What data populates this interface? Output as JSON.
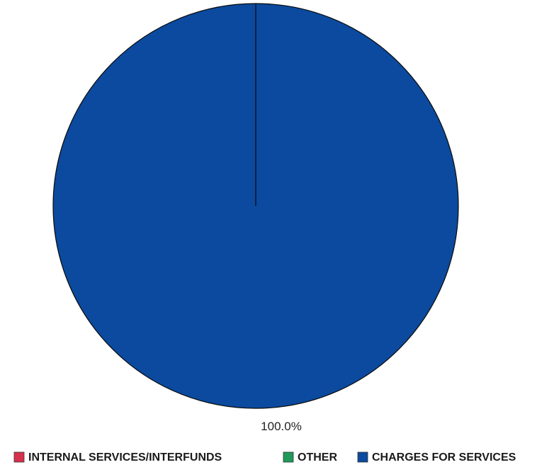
{
  "chart_data": {
    "type": "pie",
    "title": "",
    "categories": [
      "INTERNAL SERVICES/INTERFUNDS",
      "OTHER",
      "CHARGES FOR SERVICES"
    ],
    "values": [
      0.0,
      0.0,
      100.0
    ],
    "unit": "%",
    "colors": [
      "#d6314d",
      "#1f9a5a",
      "#0b4a9e"
    ],
    "data_labels": [
      "",
      "",
      "100.0%"
    ],
    "legend_position": "bottom",
    "start_angle": "12 o'clock",
    "direction": "clockwise"
  }
}
